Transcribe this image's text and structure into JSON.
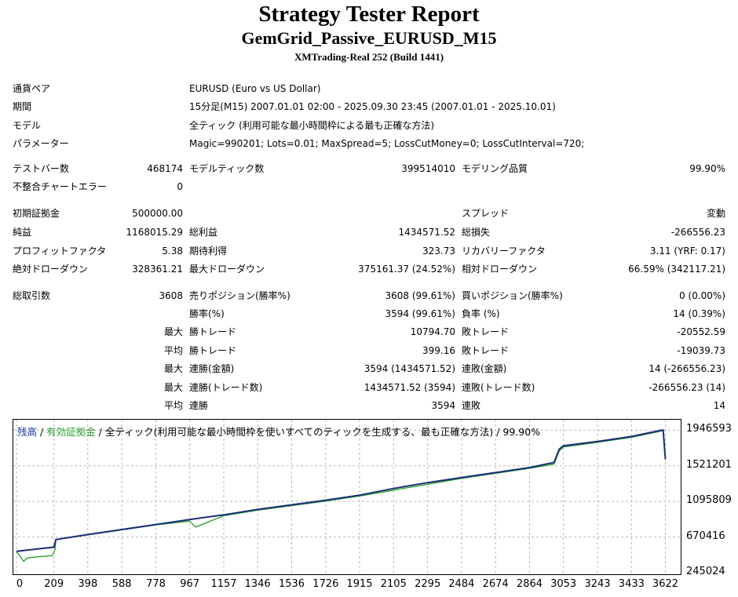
{
  "report": {
    "title": "Strategy Tester Report",
    "subtitle": "GemGrid_Passive_EURUSD_M15",
    "server": "XMTrading-Real 252 (Build 1441)"
  },
  "settings": [
    {
      "label": "通貨ペア",
      "value": "EURUSD (Euro vs US Dollar)"
    },
    {
      "label": "期間",
      "value": "15分足(M15) 2007.01.01 02:00 - 2025.09.30 23:45 (2007.01.01 - 2025.10.01)"
    },
    {
      "label": "モデル",
      "value": "全ティック (利用可能な最小時間枠による最も正確な方法)"
    },
    {
      "label": "パラメーター",
      "value": "Magic=990201; Lots=0.01; MaxSpread=5; LossCutMoney=0; LossCutInterval=720;"
    }
  ],
  "stats": {
    "bars_label": "テストバー数",
    "bars_value": "468174",
    "ticks_label": "モデルティック数",
    "ticks_value": "399514010",
    "quality_label": "モデリング品質",
    "quality_value": "99.90%",
    "mismatch_label": "不整合チャートエラー",
    "mismatch_value": "0",
    "deposit_label": "初期証拠金",
    "deposit_value": "500000.00",
    "spread_label": "スプレッド",
    "spread_value": "変動",
    "net_label": "純益",
    "net_value": "1168015.29",
    "gross_profit_label": "総利益",
    "gross_profit_value": "1434571.52",
    "gross_loss_label": "総損失",
    "gross_loss_value": "-266556.23",
    "pf_label": "プロフィットファクタ",
    "pf_value": "5.38",
    "payoff_label": "期待利得",
    "payoff_value": "323.73",
    "recovery_label": "リカバリーファクタ",
    "recovery_value": "3.11 (YRF: 0.17)",
    "abs_dd_label": "絶対ドローダウン",
    "abs_dd_value": "328361.21",
    "max_dd_label": "最大ドローダウン",
    "max_dd_value": "375161.37 (24.52%)",
    "rel_dd_label": "相対ドローダウン",
    "rel_dd_value": "66.59% (342117.21)",
    "trades_label": "総取引数",
    "trades_value": "3608",
    "short_label": "売りポジション(勝率%)",
    "short_value": "3608 (99.61%)",
    "long_label": "買いポジション(勝率%)",
    "long_value": "0 (0.00%)",
    "win_rate_label": "勝率(%)",
    "win_rate_value": "3594 (99.61%)",
    "loss_rate_label": "負率 (%)",
    "loss_rate_value": "14 (0.39%)",
    "largest_prefix": "最大",
    "largest_win_label": "勝トレード",
    "largest_win_value": "10794.70",
    "largest_loss_label": "敗トレード",
    "largest_loss_value": "-20552.59",
    "average_prefix": "平均",
    "average_win_label": "勝トレード",
    "average_win_value": "399.16",
    "average_loss_label": "敗トレード",
    "average_loss_value": "-19039.73",
    "max_consec_prefix": "最大",
    "max_consec_wins_label": "連勝(金額)",
    "max_consec_wins_value": "3594 (1434571.52)",
    "max_consec_losses_label": "連敗(金額)",
    "max_consec_losses_value": "14 (-266556.23)",
    "max_consec2_prefix": "最大",
    "max_consec_profit_label": "連勝(トレード数)",
    "max_consec_profit_value": "1434571.52 (3594)",
    "max_consec_loss_label": "連敗(トレード数)",
    "max_consec_loss_value": "-266556.23 (14)",
    "avg_consec_prefix": "平均",
    "avg_consec_wins_label": "連勝",
    "avg_consec_wins_value": "3594",
    "avg_consec_losses_label": "連敗",
    "avg_consec_losses_value": "14"
  },
  "chart_legend": {
    "balance": "残高",
    "sep1": " / ",
    "equity": "有効証拠金",
    "sep2": " / ",
    "rest": "全ティック(利用可能な最小時間枠を使いすべてのティックを生成する、最も正確な方法) / 99.90%"
  },
  "colors": {
    "balance": "#1a2f7a",
    "equity": "#2c9e2c",
    "grid": "#b8b8b8"
  },
  "chart_data": {
    "type": "line",
    "ylim": [
      245024,
      2052000
    ],
    "xlim": [
      0,
      3690
    ],
    "y_ticks": [
      "1946593",
      "1521201",
      "1095809",
      "670416",
      "245024"
    ],
    "x_ticks": [
      "0",
      "209",
      "398",
      "588",
      "778",
      "967",
      "1157",
      "1346",
      "1536",
      "1726",
      "1915",
      "2105",
      "2295",
      "2484",
      "2674",
      "2864",
      "3053",
      "3243",
      "3433",
      "3622"
    ],
    "series": [
      {
        "legend_key": "balance",
        "x": [
          0,
          209,
          220,
          398,
          588,
          778,
          967,
          1157,
          1346,
          1536,
          1726,
          1915,
          2105,
          2295,
          2484,
          2674,
          2864,
          3000,
          3030,
          3053,
          3243,
          3433,
          3600,
          3610,
          3622
        ],
        "y": [
          500000,
          550000,
          640000,
          700000,
          760000,
          820000,
          880000,
          935000,
          1000000,
          1055000,
          1110000,
          1170000,
          1250000,
          1320000,
          1380000,
          1440000,
          1500000,
          1560000,
          1720000,
          1760000,
          1810000,
          1870000,
          1945000,
          1946593,
          1600000
        ]
      },
      {
        "legend_key": "equity",
        "x": [
          0,
          40,
          60,
          100,
          200,
          215,
          220,
          398,
          588,
          778,
          967,
          1000,
          1157,
          1346,
          1536,
          1726,
          1915,
          2105,
          2295,
          2484,
          2674,
          2864,
          3000,
          3030,
          3053,
          3243,
          3433,
          3600,
          3610,
          3622
        ],
        "y": [
          500000,
          380000,
          420000,
          430000,
          450000,
          520000,
          640000,
          695000,
          755000,
          815000,
          860000,
          790000,
          925000,
          990000,
          1045000,
          1100000,
          1160000,
          1230000,
          1300000,
          1370000,
          1430000,
          1490000,
          1540000,
          1700000,
          1745000,
          1800000,
          1860000,
          1935000,
          1940000,
          1590000
        ]
      }
    ]
  }
}
